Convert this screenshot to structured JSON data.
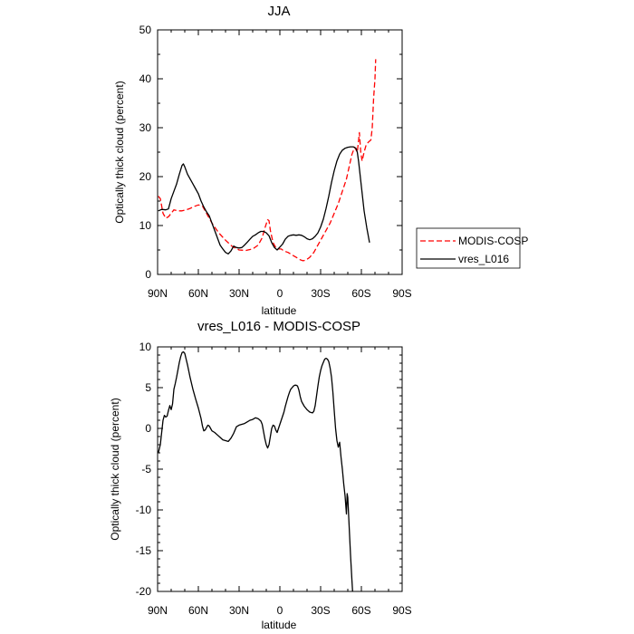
{
  "chart_data": [
    {
      "type": "line",
      "title": "JJA",
      "xlabel": "latitude",
      "ylabel": "Optically thick cloud (percent)",
      "xlim": [
        90,
        -90
      ],
      "ylim": [
        0,
        50
      ],
      "xticks": [
        90,
        60,
        30,
        0,
        -30,
        -60,
        -90
      ],
      "xtick_labels": [
        "90N",
        "60N",
        "30N",
        "0",
        "30S",
        "60S",
        "90S"
      ],
      "yticks": [
        0,
        10,
        20,
        30,
        40,
        50
      ],
      "ytick_labels": [
        "0",
        "10",
        "20",
        "30",
        "40",
        "50"
      ],
      "legend_position": "right",
      "series": [
        {
          "name": "MODIS-COSP",
          "color": "#ff0000",
          "style": "dashed",
          "points": [
            [
              89.5,
              16
            ],
            [
              88,
              15.5
            ],
            [
              86,
              12.5
            ],
            [
              84,
              11.5
            ],
            [
              82,
              11.8
            ],
            [
              80,
              12.5
            ],
            [
              78,
              13.2
            ],
            [
              75,
              13
            ],
            [
              72,
              13
            ],
            [
              69,
              13.2
            ],
            [
              66,
              13.5
            ],
            [
              63,
              13.9
            ],
            [
              60,
              14.2
            ],
            [
              57,
              14
            ],
            [
              54,
              12.5
            ],
            [
              50,
              10.5
            ],
            [
              45,
              8.5
            ],
            [
              40,
              7
            ],
            [
              35,
              5.7
            ],
            [
              30,
              5
            ],
            [
              25,
              4.9
            ],
            [
              20,
              5.2
            ],
            [
              16,
              6
            ],
            [
              13,
              7.5
            ],
            [
              11,
              9.5
            ],
            [
              9,
              11.2
            ],
            [
              8,
              11
            ],
            [
              7,
              9
            ],
            [
              5,
              6.5
            ],
            [
              3,
              5.5
            ],
            [
              1,
              5.2
            ],
            [
              -1,
              5.2
            ],
            [
              -3,
              4.8
            ],
            [
              -6,
              4.5
            ],
            [
              -9,
              4
            ],
            [
              -12,
              3.5
            ],
            [
              -15,
              3
            ],
            [
              -17,
              2.8
            ],
            [
              -19,
              2.9
            ],
            [
              -22,
              3.5
            ],
            [
              -25,
              4.5
            ],
            [
              -28,
              6
            ],
            [
              -31,
              7.5
            ],
            [
              -34,
              9
            ],
            [
              -37,
              10.5
            ],
            [
              -40,
              12.5
            ],
            [
              -43,
              14.5
            ],
            [
              -46,
              17
            ],
            [
              -49,
              19.5
            ],
            [
              -51,
              22
            ],
            [
              -53,
              24.5
            ],
            [
              -55,
              26
            ],
            [
              -57,
              25
            ],
            [
              -58.5,
              29
            ],
            [
              -59.5,
              25
            ],
            [
              -60.5,
              23.2
            ],
            [
              -62,
              25
            ],
            [
              -63.5,
              26.5
            ],
            [
              -65,
              27
            ],
            [
              -67,
              27.5
            ],
            [
              -68,
              30
            ],
            [
              -69,
              36
            ],
            [
              -70,
              40
            ],
            [
              -70.5,
              44
            ]
          ]
        },
        {
          "name": "vres_L016",
          "color": "#000000",
          "style": "solid",
          "points": [
            [
              89.5,
              13
            ],
            [
              87,
              13.3
            ],
            [
              84,
              13.2
            ],
            [
              82,
              13.4
            ],
            [
              80,
              15.5
            ],
            [
              78,
              17
            ],
            [
              76,
              18.5
            ],
            [
              74,
              20.5
            ],
            [
              72,
              22.3
            ],
            [
              71,
              22.6
            ],
            [
              70,
              22
            ],
            [
              68,
              20.5
            ],
            [
              66,
              19.5
            ],
            [
              64,
              18.5
            ],
            [
              62,
              17.5
            ],
            [
              60,
              16.5
            ],
            [
              58,
              15
            ],
            [
              56,
              13.8
            ],
            [
              54,
              12.8
            ],
            [
              52,
              12
            ],
            [
              50,
              10.5
            ],
            [
              48,
              9
            ],
            [
              46,
              7.5
            ],
            [
              44,
              6
            ],
            [
              42,
              5.2
            ],
            [
              40,
              4.5
            ],
            [
              38,
              4.2
            ],
            [
              36,
              4.8
            ],
            [
              34,
              5.8
            ],
            [
              32,
              5.5
            ],
            [
              30,
              5.4
            ],
            [
              28,
              5.5
            ],
            [
              26,
              6
            ],
            [
              24,
              6.6
            ],
            [
              22,
              7.2
            ],
            [
              20,
              7.8
            ],
            [
              18,
              8.1
            ],
            [
              16,
              8.5
            ],
            [
              14,
              8.8
            ],
            [
              12,
              8.8
            ],
            [
              10,
              8.5
            ],
            [
              8,
              7.9
            ],
            [
              6,
              6.5
            ],
            [
              4,
              5.5
            ],
            [
              2,
              5
            ],
            [
              0,
              5.6
            ],
            [
              -2,
              6.2
            ],
            [
              -4,
              7.2
            ],
            [
              -6,
              7.8
            ],
            [
              -8,
              8
            ],
            [
              -10,
              8.1
            ],
            [
              -12,
              8
            ],
            [
              -14,
              8.1
            ],
            [
              -16,
              8
            ],
            [
              -18,
              7.7
            ],
            [
              -20,
              7.3
            ],
            [
              -22,
              7.1
            ],
            [
              -24,
              7.3
            ],
            [
              -26,
              7.8
            ],
            [
              -28,
              8.5
            ],
            [
              -30,
              9.7
            ],
            [
              -32,
              11.3
            ],
            [
              -34,
              13.5
            ],
            [
              -36,
              16
            ],
            [
              -38,
              18.8
            ],
            [
              -40,
              21.2
            ],
            [
              -42,
              23.2
            ],
            [
              -44,
              24.6
            ],
            [
              -46,
              25.4
            ],
            [
              -48,
              25.8
            ],
            [
              -50,
              26
            ],
            [
              -52,
              26.1
            ],
            [
              -54,
              26.1
            ],
            [
              -56,
              25.8
            ],
            [
              -57,
              25
            ],
            [
              -58,
              23
            ],
            [
              -60,
              18
            ],
            [
              -62,
              13
            ],
            [
              -64,
              9.5
            ],
            [
              -66,
              6.5
            ]
          ]
        }
      ]
    },
    {
      "type": "line",
      "title": "vres_L016 - MODIS-COSP",
      "xlabel": "latitude",
      "ylabel": "Optically thick cloud (percent)",
      "xlim": [
        90,
        -90
      ],
      "ylim": [
        -20,
        10
      ],
      "xticks": [
        90,
        60,
        30,
        0,
        -30,
        -60,
        -90
      ],
      "xtick_labels": [
        "90N",
        "60N",
        "30N",
        "0",
        "30S",
        "60S",
        "90S"
      ],
      "yticks": [
        -20,
        -15,
        -10,
        -5,
        0,
        5,
        10
      ],
      "ytick_labels": [
        "-20",
        "-15",
        "-10",
        "-5",
        "0",
        "5",
        "10"
      ],
      "series": [
        {
          "name": "vres_L016 - MODIS-COSP",
          "color": "#000000",
          "style": "solid",
          "points": [
            [
              89.5,
              -3
            ],
            [
              88,
              -2
            ],
            [
              87,
              -0.5
            ],
            [
              86,
              1
            ],
            [
              85,
              1.6
            ],
            [
              84,
              1.4
            ],
            [
              83,
              1.5
            ],
            [
              82,
              2.2
            ],
            [
              81,
              2.8
            ],
            [
              80,
              2.3
            ],
            [
              79,
              3
            ],
            [
              78,
              4.8
            ],
            [
              77,
              5.5
            ],
            [
              76,
              6.3
            ],
            [
              75,
              7.2
            ],
            [
              74,
              8.1
            ],
            [
              73,
              8.8
            ],
            [
              72,
              9.3
            ],
            [
              71,
              9.4
            ],
            [
              70,
              9.2
            ],
            [
              69,
              8.5
            ],
            [
              68,
              7.8
            ],
            [
              67,
              7
            ],
            [
              66,
              6.2
            ],
            [
              65,
              5.5
            ],
            [
              64,
              4.8
            ],
            [
              62,
              3.6
            ],
            [
              60,
              2.5
            ],
            [
              58,
              1.2
            ],
            [
              57,
              0.3
            ],
            [
              56,
              -0.3
            ],
            [
              55,
              -0.2
            ],
            [
              54,
              0.1
            ],
            [
              53,
              0.4
            ],
            [
              52,
              0.3
            ],
            [
              51,
              0
            ],
            [
              50,
              -0.3
            ],
            [
              48,
              -0.5
            ],
            [
              46,
              -0.8
            ],
            [
              44,
              -1.1
            ],
            [
              42,
              -1.4
            ],
            [
              40,
              -1.5
            ],
            [
              38,
              -1.6
            ],
            [
              36,
              -1.2
            ],
            [
              34,
              -0.6
            ],
            [
              32,
              0.2
            ],
            [
              30,
              0.4
            ],
            [
              28,
              0.5
            ],
            [
              26,
              0.6
            ],
            [
              24,
              0.8
            ],
            [
              22,
              1
            ],
            [
              20,
              1.1
            ],
            [
              18,
              1.3
            ],
            [
              16,
              1.2
            ],
            [
              14,
              0.9
            ],
            [
              13,
              0.5
            ],
            [
              12,
              -0.4
            ],
            [
              11,
              -1.3
            ],
            [
              10,
              -2
            ],
            [
              9,
              -2.4
            ],
            [
              8,
              -2
            ],
            [
              7,
              -1
            ],
            [
              6,
              0
            ],
            [
              5,
              0.4
            ],
            [
              4,
              0.3
            ],
            [
              3,
              -0.2
            ],
            [
              2,
              -0.5
            ],
            [
              1,
              0
            ],
            [
              0,
              0.5
            ],
            [
              -1,
              1
            ],
            [
              -2,
              1.5
            ],
            [
              -3,
              2
            ],
            [
              -4,
              2.7
            ],
            [
              -5,
              3.3
            ],
            [
              -6,
              3.9
            ],
            [
              -7,
              4.4
            ],
            [
              -8,
              4.8
            ],
            [
              -9,
              5
            ],
            [
              -10,
              5.2
            ],
            [
              -11,
              5.3
            ],
            [
              -12,
              5.3
            ],
            [
              -13,
              5.2
            ],
            [
              -14,
              4.7
            ],
            [
              -15,
              3.9
            ],
            [
              -16,
              3.3
            ],
            [
              -17,
              3
            ],
            [
              -18,
              2.7
            ],
            [
              -19,
              2.5
            ],
            [
              -20,
              2.3
            ],
            [
              -22,
              2
            ],
            [
              -24,
              1.9
            ],
            [
              -25,
              2.1
            ],
            [
              -26,
              2.8
            ],
            [
              -27,
              4
            ],
            [
              -28,
              5.2
            ],
            [
              -29,
              6.3
            ],
            [
              -30,
              7.1
            ],
            [
              -31,
              7.7
            ],
            [
              -32,
              8.1
            ],
            [
              -33,
              8.5
            ],
            [
              -34,
              8.6
            ],
            [
              -35,
              8.5
            ],
            [
              -36,
              8.2
            ],
            [
              -37,
              7.4
            ],
            [
              -38,
              6.3
            ],
            [
              -39,
              4.5
            ],
            [
              -40,
              2.2
            ],
            [
              -41,
              0
            ],
            [
              -42,
              -1.5
            ],
            [
              -43,
              -2.3
            ],
            [
              -44,
              -1.7
            ],
            [
              -45,
              -3.5
            ],
            [
              -46,
              -5
            ],
            [
              -47,
              -6.8
            ],
            [
              -48,
              -8.3
            ],
            [
              -49,
              -10.5
            ],
            [
              -49.5,
              -8
            ],
            [
              -50,
              -8.5
            ],
            [
              -51,
              -12
            ],
            [
              -52,
              -15.5
            ],
            [
              -53,
              -18.5
            ],
            [
              -53.5,
              -20
            ]
          ]
        }
      ]
    }
  ]
}
